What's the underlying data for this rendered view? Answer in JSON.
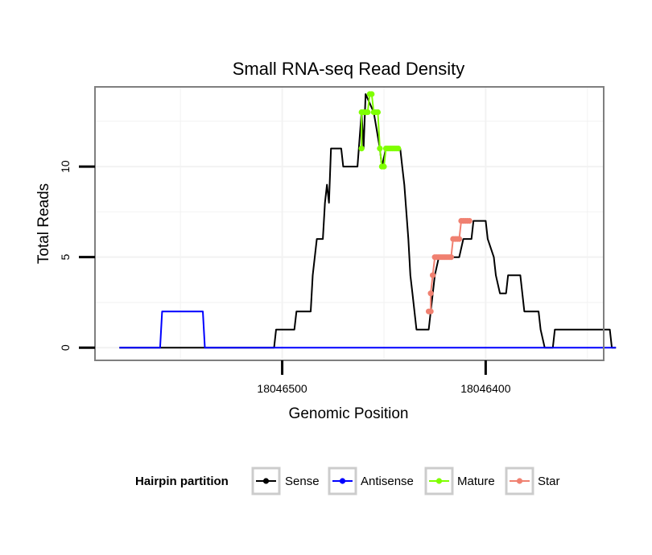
{
  "chart_data": {
    "type": "line",
    "title": "Small RNA-seq Read Density",
    "xlabel": "Genomic Position",
    "ylabel": "Total Reads",
    "x_reversed": true,
    "xlim": [
      18046592,
      18046342
    ],
    "ylim": [
      -0.7,
      14.4
    ],
    "x_ticks": [
      {
        "value": 18046500,
        "label": "18046500"
      },
      {
        "value": 18046400,
        "label": "18046400"
      }
    ],
    "y_ticks": [
      {
        "value": 0,
        "label": "0"
      },
      {
        "value": 5,
        "label": "5"
      },
      {
        "value": 10,
        "label": "10"
      }
    ],
    "grid": true,
    "legend": {
      "title": "Hairpin partition",
      "position": "bottom",
      "entries": [
        "Sense",
        "Antisense",
        "Mature",
        "Star"
      ]
    },
    "series": [
      {
        "name": "Sense",
        "color": "#000000",
        "marker": "line",
        "points": [
          [
            18046580,
            0
          ],
          [
            18046504,
            0
          ],
          [
            18046503,
            1
          ],
          [
            18046494,
            1
          ],
          [
            18046493,
            2
          ],
          [
            18046486,
            2
          ],
          [
            18046485,
            4
          ],
          [
            18046483,
            6
          ],
          [
            18046480,
            6
          ],
          [
            18046479,
            8
          ],
          [
            18046478,
            9
          ],
          [
            18046477,
            8
          ],
          [
            18046476,
            11
          ],
          [
            18046471,
            11
          ],
          [
            18046470,
            10
          ],
          [
            18046463,
            10
          ],
          [
            18046461,
            13
          ],
          [
            18046460,
            11
          ],
          [
            18046459,
            14
          ],
          [
            18046455,
            13
          ],
          [
            18046452,
            11
          ],
          [
            18046451,
            10
          ],
          [
            18046449,
            11
          ],
          [
            18046442,
            11
          ],
          [
            18046441,
            10
          ],
          [
            18046440,
            9
          ],
          [
            18046438,
            6
          ],
          [
            18046437,
            4
          ],
          [
            18046436,
            3
          ],
          [
            18046435,
            2
          ],
          [
            18046434,
            1
          ],
          [
            18046428,
            1
          ],
          [
            18046427,
            2
          ],
          [
            18046425,
            4
          ],
          [
            18046423,
            5
          ],
          [
            18046413,
            5
          ],
          [
            18046411,
            6
          ],
          [
            18046407,
            6
          ],
          [
            18046406,
            7
          ],
          [
            18046400,
            7
          ],
          [
            18046399,
            6
          ],
          [
            18046396,
            5
          ],
          [
            18046395,
            4
          ],
          [
            18046393,
            3
          ],
          [
            18046390,
            3
          ],
          [
            18046389,
            4
          ],
          [
            18046383,
            4
          ],
          [
            18046382,
            3
          ],
          [
            18046381,
            2
          ],
          [
            18046374,
            2
          ],
          [
            18046373,
            1
          ],
          [
            18046371,
            0
          ],
          [
            18046367,
            0
          ],
          [
            18046366,
            1
          ],
          [
            18046339,
            1
          ],
          [
            18046338,
            0
          ],
          [
            18046336,
            0
          ]
        ]
      },
      {
        "name": "Antisense",
        "color": "#0000ff",
        "marker": "line",
        "points": [
          [
            18046580,
            0
          ],
          [
            18046560,
            0
          ],
          [
            18046559,
            2
          ],
          [
            18046539,
            2
          ],
          [
            18046538,
            0
          ],
          [
            18046336,
            0
          ]
        ]
      },
      {
        "name": "Mature",
        "color": "#7fff00",
        "marker": "point",
        "points": [
          [
            18046461,
            11
          ],
          [
            18046461,
            13
          ],
          [
            18046460,
            13
          ],
          [
            18046459,
            13
          ],
          [
            18046458,
            13
          ],
          [
            18046457,
            14
          ],
          [
            18046456,
            14
          ],
          [
            18046455,
            13
          ],
          [
            18046454,
            13
          ],
          [
            18046453,
            13
          ],
          [
            18046452,
            11
          ],
          [
            18046451,
            10
          ],
          [
            18046450,
            10
          ],
          [
            18046449,
            11
          ],
          [
            18046448,
            11
          ],
          [
            18046447,
            11
          ],
          [
            18046446,
            11
          ],
          [
            18046445,
            11
          ],
          [
            18046444,
            11
          ],
          [
            18046443,
            11
          ]
        ]
      },
      {
        "name": "Star",
        "color": "#f08070",
        "marker": "point",
        "points": [
          [
            18046428,
            2
          ],
          [
            18046427,
            2
          ],
          [
            18046427,
            3
          ],
          [
            18046426,
            4
          ],
          [
            18046425,
            5
          ],
          [
            18046424,
            5
          ],
          [
            18046423,
            5
          ],
          [
            18046422,
            5
          ],
          [
            18046421,
            5
          ],
          [
            18046420,
            5
          ],
          [
            18046419,
            5
          ],
          [
            18046418,
            5
          ],
          [
            18046417,
            5
          ],
          [
            18046416,
            6
          ],
          [
            18046415,
            6
          ],
          [
            18046414,
            6
          ],
          [
            18046413,
            6
          ],
          [
            18046412,
            7
          ],
          [
            18046411,
            7
          ],
          [
            18046410,
            7
          ],
          [
            18046409,
            7
          ],
          [
            18046408,
            7
          ]
        ]
      }
    ]
  }
}
